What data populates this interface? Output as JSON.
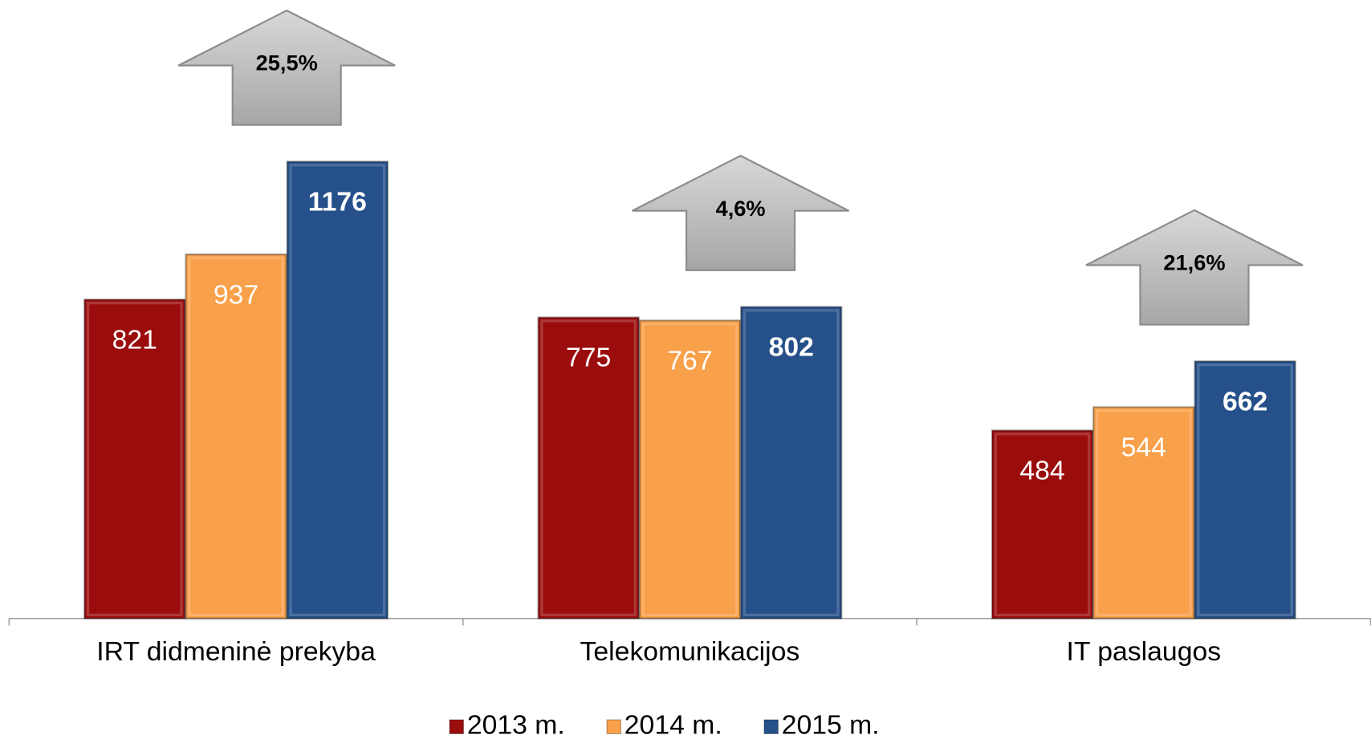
{
  "chart_data": {
    "type": "bar",
    "categories": [
      "IRT didmeninė prekyba",
      "Telekomunikacijos",
      "IT paslaugos"
    ],
    "series": [
      {
        "name": "2013 m.",
        "color": "#9b0d0d",
        "values": [
          821,
          775,
          484
        ]
      },
      {
        "name": "2014 m.",
        "color": "#f9a04a",
        "values": [
          937,
          767,
          544
        ]
      },
      {
        "name": "2015 m.",
        "color": "#25508a",
        "values": [
          1176,
          802,
          662
        ]
      }
    ],
    "annotations": [
      "25,5%",
      "4,6%",
      "21,6%"
    ],
    "legend": "bottom"
  }
}
